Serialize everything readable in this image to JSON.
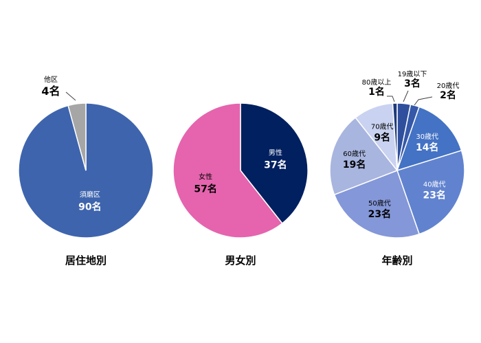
{
  "chart_data": [
    {
      "type": "pie",
      "title": "居住地別",
      "slices": [
        {
          "label": "須磨区",
          "value": 90,
          "value_label": "90名",
          "color": "#3E64AD"
        },
        {
          "label": "他区",
          "value": 4,
          "value_label": "4名",
          "color": "#A6A6A6"
        }
      ]
    },
    {
      "type": "pie",
      "title": "男女別",
      "slices": [
        {
          "label": "男性",
          "value": 37,
          "value_label": "37名",
          "color": "#002060"
        },
        {
          "label": "女性",
          "value": 57,
          "value_label": "57名",
          "color": "#E564AD"
        }
      ]
    },
    {
      "type": "pie",
      "title": "年齢別",
      "slices": [
        {
          "label": "19歳以下",
          "value": 3,
          "value_label": "3名",
          "color": "#2F4F9C"
        },
        {
          "label": "20歳代",
          "value": 2,
          "value_label": "2名",
          "color": "#3558A8"
        },
        {
          "label": "30歳代",
          "value": 14,
          "value_label": "14名",
          "color": "#4472C4"
        },
        {
          "label": "40歳代",
          "value": 23,
          "value_label": "23名",
          "color": "#6183CF"
        },
        {
          "label": "50歳代",
          "value": 23,
          "value_label": "23名",
          "color": "#8497D8"
        },
        {
          "label": "60歳代",
          "value": 19,
          "value_label": "19名",
          "color": "#A8B5DF"
        },
        {
          "label": "70歳代",
          "value": 9,
          "value_label": "9名",
          "color": "#C9D2F0"
        },
        {
          "label": "80歳以上",
          "value": 1,
          "value_label": "1名",
          "color": "#1F3A7A"
        }
      ]
    }
  ]
}
